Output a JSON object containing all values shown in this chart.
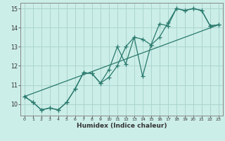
{
  "xlabel": "Humidex (Indice chaleur)",
  "bg_color": "#cceee8",
  "line_color": "#2a7a6e",
  "grid_color": "#aad4ce",
  "spine_color": "#888888",
  "xlim": [
    -0.5,
    23.5
  ],
  "ylim": [
    9.4,
    15.3
  ],
  "yticks": [
    10,
    11,
    12,
    13,
    14,
    15
  ],
  "xticks": [
    0,
    1,
    2,
    3,
    4,
    5,
    6,
    7,
    8,
    9,
    10,
    11,
    12,
    13,
    14,
    15,
    16,
    17,
    18,
    19,
    20,
    21,
    22,
    23
  ],
  "line1_x": [
    0,
    1,
    2,
    3,
    4,
    5,
    6,
    7,
    8,
    9,
    10,
    11,
    12,
    13,
    14,
    15,
    16,
    17,
    18,
    19,
    20,
    21,
    22,
    23
  ],
  "line1_y": [
    10.4,
    10.1,
    9.7,
    9.8,
    9.7,
    10.1,
    10.8,
    11.65,
    11.6,
    11.1,
    11.4,
    12.0,
    13.0,
    13.5,
    13.4,
    13.1,
    14.2,
    14.1,
    15.0,
    14.9,
    15.0,
    14.9,
    14.1,
    14.15
  ],
  "line2_x": [
    0,
    1,
    2,
    3,
    4,
    5,
    6,
    7,
    8,
    9,
    10,
    11,
    12,
    13,
    14,
    15,
    16,
    17,
    18,
    19,
    20,
    21,
    22,
    23
  ],
  "line2_y": [
    10.4,
    10.1,
    9.7,
    9.8,
    9.7,
    10.1,
    10.8,
    11.65,
    11.6,
    11.1,
    11.8,
    13.0,
    12.1,
    13.5,
    11.45,
    13.1,
    13.5,
    14.25,
    15.0,
    14.9,
    15.0,
    14.9,
    14.1,
    14.15
  ],
  "line3_x": [
    0,
    23
  ],
  "line3_y": [
    10.4,
    14.15
  ]
}
